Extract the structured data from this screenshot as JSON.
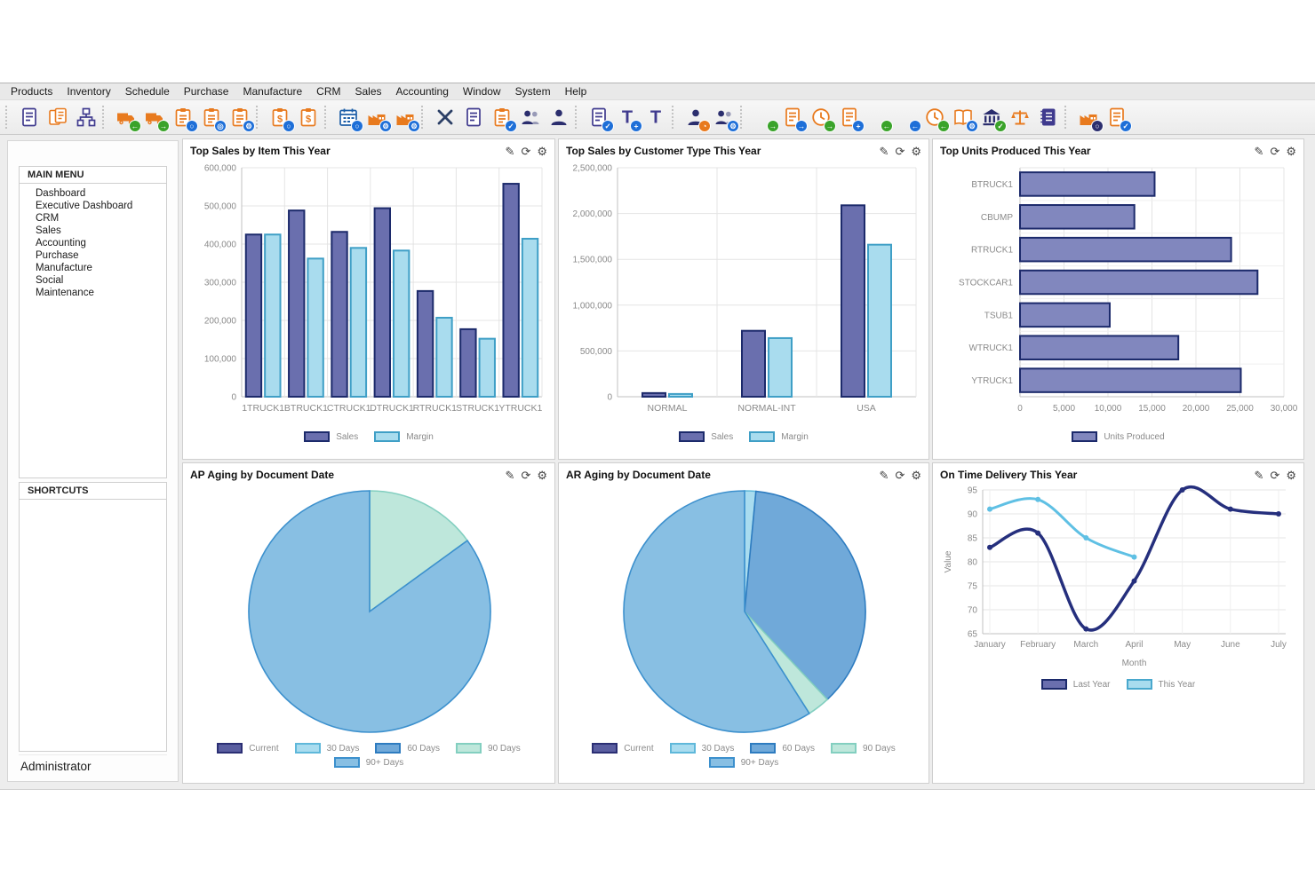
{
  "menu_bar": {
    "items": [
      "Products",
      "Inventory",
      "Schedule",
      "Purchase",
      "Manufacture",
      "CRM",
      "Sales",
      "Accounting",
      "Window",
      "System",
      "Help"
    ]
  },
  "toolbar": {
    "icons": [
      {
        "type": "sep"
      },
      {
        "name": "items-icon",
        "base": "doc",
        "color": "#3f3a8e"
      },
      {
        "name": "item-list-icon",
        "base": "doc2",
        "color": "#e87a1e"
      },
      {
        "name": "bom-icon",
        "base": "hierarchy",
        "color": "#3f3a8e"
      },
      {
        "type": "sep"
      },
      {
        "name": "receive-truck-icon",
        "base": "truck",
        "color": "#e87a1e",
        "badge": "←",
        "badge_color": "#3aa32a"
      },
      {
        "name": "ship-truck-icon",
        "base": "truck",
        "color": "#e87a1e",
        "badge": "→",
        "badge_color": "#3aa32a"
      },
      {
        "name": "order-search-icon",
        "base": "clipboard",
        "color": "#e87a1e",
        "badge": "○",
        "badge_color": "#1e6fd8"
      },
      {
        "name": "order-locate-icon",
        "base": "clipboard",
        "color": "#e87a1e",
        "badge": "◎",
        "badge_color": "#1e6fd8"
      },
      {
        "name": "order-settings-icon",
        "base": "clipboard",
        "color": "#e87a1e",
        "badge": "⚙",
        "badge_color": "#1e6fd8"
      },
      {
        "type": "sep"
      },
      {
        "name": "quote-search-icon",
        "base": "clipdollar",
        "color": "#e87a1e",
        "badge": "○",
        "badge_color": "#1e6fd8"
      },
      {
        "name": "invoice-icon",
        "base": "clipdollar",
        "color": "#e87a1e"
      },
      {
        "type": "sep"
      },
      {
        "name": "schedule-search-icon",
        "base": "calendar",
        "color": "#1e5fa8",
        "badge": "○",
        "badge_color": "#1e6fd8"
      },
      {
        "name": "work-order-icon",
        "base": "factory",
        "color": "#e87a1e",
        "badge": "⚙",
        "badge_color": "#1e6fd8"
      },
      {
        "name": "work-center-icon",
        "base": "factory",
        "color": "#e87a1e",
        "badge": "⚙",
        "badge_color": "#1e6fd8"
      },
      {
        "type": "sep"
      },
      {
        "name": "maintenance-tools-icon",
        "base": "tools",
        "color": "#2b3f66"
      },
      {
        "name": "task-list-icon",
        "base": "doc",
        "color": "#3f3a8e"
      },
      {
        "name": "todo-check-icon",
        "base": "clipboard",
        "color": "#e87a1e",
        "badge": "✓",
        "badge_color": "#1e6fd8"
      },
      {
        "name": "contacts-icon",
        "base": "people",
        "color": "#2b2e6e"
      },
      {
        "name": "account-icon",
        "base": "person",
        "color": "#2b2e6e"
      },
      {
        "type": "sep"
      },
      {
        "name": "project-check-icon",
        "base": "doc",
        "color": "#3f3a8e",
        "badge": "✓",
        "badge_color": "#1e6fd8"
      },
      {
        "name": "time-entry-icon",
        "base": "lettert",
        "color": "#3f3a8e",
        "badge": "+",
        "badge_color": "#1e6fd8"
      },
      {
        "name": "timesheet-icon",
        "base": "lettert",
        "color": "#3f3a8e"
      },
      {
        "type": "sep"
      },
      {
        "name": "attendance-clock-icon",
        "base": "person",
        "color": "#2b2e6e",
        "badge": "◔",
        "badge_color": "#e87a1e"
      },
      {
        "name": "employees-gear-icon",
        "base": "people",
        "color": "#2b2e6e",
        "badge": "⚙",
        "badge_color": "#1e6fd8"
      },
      {
        "type": "sep"
      },
      {
        "name": "payables-icon",
        "base": "docdollar",
        "color": "#e87a1e",
        "badge": "→",
        "badge_color": "#3aa32a"
      },
      {
        "name": "voucher-icon",
        "base": "doc",
        "color": "#e87a1e",
        "badge": "→",
        "badge_color": "#1e6fd8"
      },
      {
        "name": "ap-aging-clock-icon",
        "base": "clock",
        "color": "#e87a1e",
        "badge": "→",
        "badge_color": "#3aa32a"
      },
      {
        "name": "check-run-icon",
        "base": "doc",
        "color": "#e87a1e",
        "badge": "+",
        "badge_color": "#1e6fd8"
      },
      {
        "name": "receivables-icon",
        "base": "docdollar",
        "color": "#e87a1e",
        "badge": "←",
        "badge_color": "#3aa32a"
      },
      {
        "name": "credit-memo-icon",
        "base": "docdollar",
        "color": "#e87a1e",
        "badge": "←",
        "badge_color": "#1e6fd8"
      },
      {
        "name": "ar-aging-clock-icon",
        "base": "clock",
        "color": "#e87a1e",
        "badge": "←",
        "badge_color": "#3aa32a"
      },
      {
        "name": "ledger-gear-icon",
        "base": "book",
        "color": "#e87a1e",
        "badge": "⚙",
        "badge_color": "#1e6fd8"
      },
      {
        "name": "bank-rec-icon",
        "base": "bank",
        "color": "#2b2e6e",
        "badge": "✓",
        "badge_color": "#3aa32a"
      },
      {
        "name": "trial-balance-icon",
        "base": "scale",
        "color": "#e87a1e"
      },
      {
        "name": "journal-icon",
        "base": "journal",
        "color": "#3f3a8e"
      },
      {
        "type": "sep"
      },
      {
        "name": "site-search-icon",
        "base": "factory",
        "color": "#e87a1e",
        "badge": "○",
        "badge_color": "#2b2e6e"
      },
      {
        "name": "reports-check-icon",
        "base": "doc",
        "color": "#e87a1e",
        "badge": "✓",
        "badge_color": "#1e6fd8"
      }
    ]
  },
  "sidebar": {
    "main_menu": {
      "title": "MAIN MENU",
      "items": [
        "Dashboard",
        "Executive Dashboard",
        "CRM",
        "Sales",
        "Accounting",
        "Purchase",
        "Manufacture",
        "Social",
        "Maintenance"
      ]
    },
    "shortcuts": {
      "title": "SHORTCUTS",
      "items": []
    },
    "user": "Administrator"
  },
  "panel_actions": [
    {
      "name": "edit",
      "glyph": "✎"
    },
    {
      "name": "refresh",
      "glyph": "⟳"
    },
    {
      "name": "settings",
      "glyph": "⚙"
    }
  ],
  "colors": {
    "sales_fill": "#6a6fae",
    "sales_border": "#1c2a6b",
    "margin_fill": "#a9dcee",
    "margin_border": "#3f9fc6",
    "units_fill": "#8187be",
    "units_border": "#1c2a6b",
    "grid": "#e4e4e4",
    "axis": "#c0c0c0",
    "tick_text": "#8a8a8a",
    "panel_border": "#cfcfcf"
  },
  "chart_data": [
    {
      "type": "bar",
      "title": "Top Sales by Item This Year",
      "categories": [
        "1TRUCK1",
        "BTRUCK1",
        "CTRUCK1",
        "DTRUCK1",
        "RTRUCK1",
        "STRUCK1",
        "YTRUCK1"
      ],
      "series": [
        {
          "name": "Sales",
          "color": "#6a6fae",
          "border": "#1c2a6b",
          "values": [
            425000,
            488000,
            432000,
            494000,
            277000,
            177000,
            558000
          ]
        },
        {
          "name": "Margin",
          "color": "#a9dcee",
          "border": "#3f9fc6",
          "values": [
            425000,
            362000,
            390000,
            383000,
            207000,
            152000,
            414000
          ]
        }
      ],
      "ylim": [
        0,
        600000
      ],
      "ytick_step": 100000,
      "grid": true,
      "legend_position": "bottom"
    },
    {
      "type": "bar",
      "title": "Top Sales by Customer Type This Year",
      "categories": [
        "NORMAL",
        "NORMAL-INT",
        "USA"
      ],
      "series": [
        {
          "name": "Sales",
          "color": "#6a6fae",
          "border": "#1c2a6b",
          "values": [
            40000,
            720000,
            2090000
          ]
        },
        {
          "name": "Margin",
          "color": "#a9dcee",
          "border": "#3f9fc6",
          "values": [
            30000,
            640000,
            1660000
          ]
        }
      ],
      "ylim": [
        0,
        2500000
      ],
      "ytick_step": 500000,
      "grid": true,
      "legend_position": "bottom"
    },
    {
      "type": "hbar",
      "title": "Top Units Produced This Year",
      "categories": [
        "BTRUCK1",
        "CBUMP",
        "RTRUCK1",
        "STOCKCAR1",
        "TSUB1",
        "WTRUCK1",
        "YTRUCK1"
      ],
      "series": [
        {
          "name": "Units Produced",
          "color": "#8187be",
          "border": "#1c2a6b",
          "values": [
            15300,
            13000,
            24000,
            27000,
            10200,
            18000,
            25100
          ]
        }
      ],
      "xlim": [
        0,
        30000
      ],
      "xtick_step": 5000,
      "grid": true,
      "legend_position": "bottom"
    },
    {
      "type": "pie",
      "title": "AP Aging by Document Date",
      "slices": [
        {
          "label": "Current",
          "value": 0,
          "color": "#5a5ea0",
          "border": "#2b2f74"
        },
        {
          "label": "30 Days",
          "value": 0,
          "color": "#a9dcef",
          "border": "#5fb8da"
        },
        {
          "label": "60 Days",
          "value": 0,
          "color": "#70a9d9",
          "border": "#2e7cc0"
        },
        {
          "label": "90 Days",
          "value": 15,
          "color": "#bee7db",
          "border": "#83cfc0"
        },
        {
          "label": "90+ Days",
          "value": 85,
          "color": "#88bfe3",
          "border": "#3c90cd"
        }
      ],
      "legend_position": "bottom"
    },
    {
      "type": "pie",
      "title": "AR Aging by Document Date",
      "slices": [
        {
          "label": "Current",
          "value": 0,
          "color": "#5a5ea0",
          "border": "#2b2f74"
        },
        {
          "label": "30 Days",
          "value": 1.5,
          "color": "#a9dcef",
          "border": "#5fb8da"
        },
        {
          "label": "60 Days",
          "value": 36.5,
          "color": "#70a9d9",
          "border": "#2e7cc0"
        },
        {
          "label": "90 Days",
          "value": 3,
          "color": "#bee7db",
          "border": "#83cfc0"
        },
        {
          "label": "90+ Days",
          "value": 59,
          "color": "#88bfe3",
          "border": "#3c90cd"
        }
      ],
      "legend_position": "bottom"
    },
    {
      "type": "line",
      "title": "On Time Delivery This Year",
      "x": [
        "January",
        "February",
        "March",
        "April",
        "May",
        "June",
        "July"
      ],
      "xlabel": "Month",
      "ylabel": "Value",
      "ylim": [
        65,
        95
      ],
      "ytick_step": 5,
      "grid": true,
      "legend_position": "bottom",
      "series": [
        {
          "name": "Last Year",
          "line_color": "#252f7d",
          "swatch_fill": "#6a6fae",
          "swatch_border": "#1c2a6b",
          "values": [
            83,
            86,
            66,
            76,
            95,
            91,
            90
          ]
        },
        {
          "name": "This Year",
          "line_color": "#5fc0e4",
          "swatch_fill": "#a9dcee",
          "swatch_border": "#49a8cd",
          "values": [
            91,
            93,
            85,
            81
          ]
        }
      ]
    }
  ]
}
